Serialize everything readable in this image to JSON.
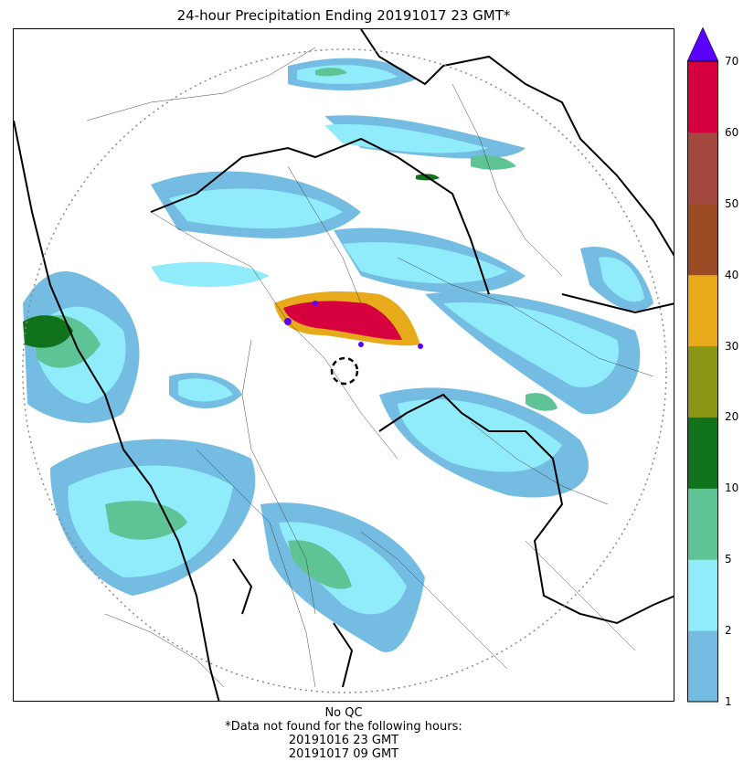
{
  "title": "24-hour Precipitation Ending 20191017 23 GMT*",
  "footer": {
    "qc_note": "No QC",
    "missing_note": "*Data not found for the following hours:",
    "missing_hours": [
      "20191016 23 GMT",
      "20191017 09 GMT"
    ]
  },
  "colorbar": {
    "ticks": [
      "1",
      "2",
      "5",
      "10",
      "20",
      "30",
      "40",
      "50",
      "60",
      "70"
    ],
    "colors": [
      "#74bce1",
      "#90ecfb",
      "#5ec495",
      "#10731c",
      "#8a9616",
      "#e6aa1b",
      "#9c4c24",
      "#a3483f",
      "#d6003f"
    ],
    "extend_color": "#5a00ff"
  },
  "legend": {
    "radar_range": "dotted-circle",
    "radar_site": "dashed-circle",
    "borders": "black-state-lines",
    "districts": "thin-gray-lines"
  }
}
